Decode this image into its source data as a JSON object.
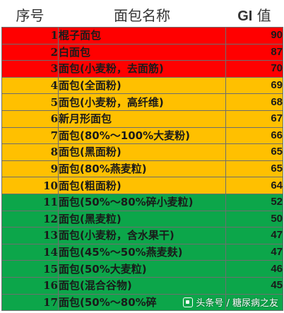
{
  "header": {
    "no": "序号",
    "name": "面包名称",
    "gi_latin": "GI",
    "gi_cjk": "值"
  },
  "colors": {
    "high": "#ff0000",
    "medium": "#ffc000",
    "low": "#0ca64a"
  },
  "rows": [
    {
      "no": "1",
      "name": "棍子面包",
      "gi": "90",
      "band": "high"
    },
    {
      "no": "2",
      "name": "白面包",
      "gi": "87",
      "band": "high"
    },
    {
      "no": "3",
      "name": "面包(小麦粉，去面筋)",
      "gi": "70",
      "band": "high"
    },
    {
      "no": "4",
      "name": "面包(全面粉)",
      "gi": "69",
      "band": "medium"
    },
    {
      "no": "5",
      "name": "面包(小麦粉，高纤维)",
      "gi": "68",
      "band": "medium"
    },
    {
      "no": "6",
      "name": "新月形面包",
      "gi": "67",
      "band": "medium"
    },
    {
      "no": "7",
      "name": "面包(80%～100%大麦粉)",
      "gi": "66",
      "band": "medium"
    },
    {
      "no": "8",
      "name": "面包(黑面粉)",
      "gi": "65",
      "band": "medium"
    },
    {
      "no": "9",
      "name": "面包(80%燕麦粒)",
      "gi": "65",
      "band": "medium"
    },
    {
      "no": "10",
      "name": "面包(粗面粉)",
      "gi": "64",
      "band": "medium"
    },
    {
      "no": "11",
      "name": "面包(50%～80%碎小麦粒)",
      "gi": "52",
      "band": "low"
    },
    {
      "no": "12",
      "name": "面包(黑麦粒)",
      "gi": "50",
      "band": "low"
    },
    {
      "no": "13",
      "name": "面包(小麦粉，含水果干)",
      "gi": "47",
      "band": "low"
    },
    {
      "no": "14",
      "name": "面包(45%～50%燕麦麸)",
      "gi": "47",
      "band": "low"
    },
    {
      "no": "15",
      "name": "面包(50%大麦粒)",
      "gi": "46",
      "band": "low"
    },
    {
      "no": "16",
      "name": "面包(混合谷物)",
      "gi": "45",
      "band": "low"
    },
    {
      "no": "17",
      "name": "面包(50%～80%碎",
      "gi": "",
      "band": "low"
    }
  ],
  "watermark": {
    "text": "头条号 / 糖尿病之友",
    "icon": "toutiao-logo-icon"
  }
}
